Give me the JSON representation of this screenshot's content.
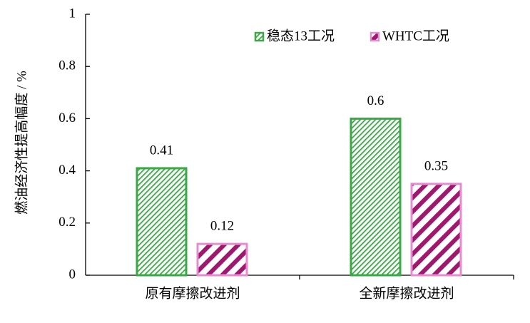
{
  "chart_data": {
    "type": "bar",
    "y_label": "燃油经济性提高幅度 / %",
    "categories": [
      "原有摩擦改进剂",
      "全新摩擦改进剂"
    ],
    "series": [
      {
        "name": "稳态13工况",
        "color": "#3aa845",
        "hatch_color": "#3aa845",
        "values": [
          0.41,
          0.6
        ]
      },
      {
        "name": "WHTC工况",
        "color": "#e58bd0",
        "hatch_color": "#a0176e",
        "values": [
          0.12,
          0.35
        ]
      }
    ],
    "ylim": [
      0,
      1
    ],
    "yticks": [
      0,
      0.2,
      0.4,
      0.6,
      0.8,
      1
    ]
  }
}
